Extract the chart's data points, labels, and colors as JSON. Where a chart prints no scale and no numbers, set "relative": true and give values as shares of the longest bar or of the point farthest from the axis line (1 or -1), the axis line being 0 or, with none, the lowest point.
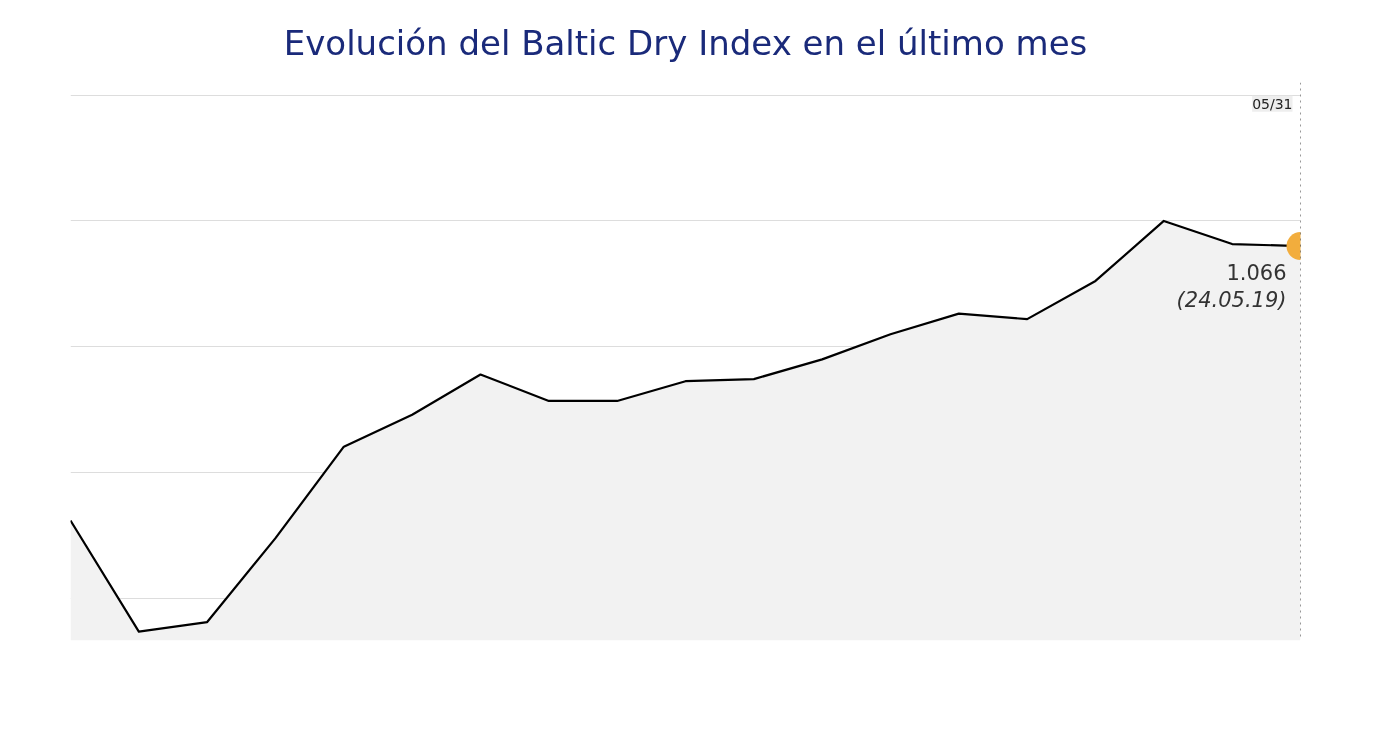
{
  "chart_data": {
    "type": "area",
    "title": "Evolución del Baltic Dry Index en el último mes",
    "relative": true,
    "categories": [
      null,
      null,
      null,
      null,
      null,
      null,
      null,
      null,
      null,
      null,
      null,
      null,
      null,
      null,
      null,
      null,
      null,
      null,
      null
    ],
    "series": [
      {
        "color": "#000000",
        "values": [
          0.286,
          0.021,
          0.044,
          0.244,
          0.462,
          0.538,
          0.634,
          0.571,
          0.571,
          0.618,
          0.623,
          0.67,
          0.73,
          0.779,
          0.766,
          0.857,
          1.0,
          0.945,
          0.94
        ]
      }
    ],
    "grid": "y",
    "line_style": "solid",
    "annotations": [
      "05/31",
      "1.066\n(24.05.19)"
    ]
  }
}
